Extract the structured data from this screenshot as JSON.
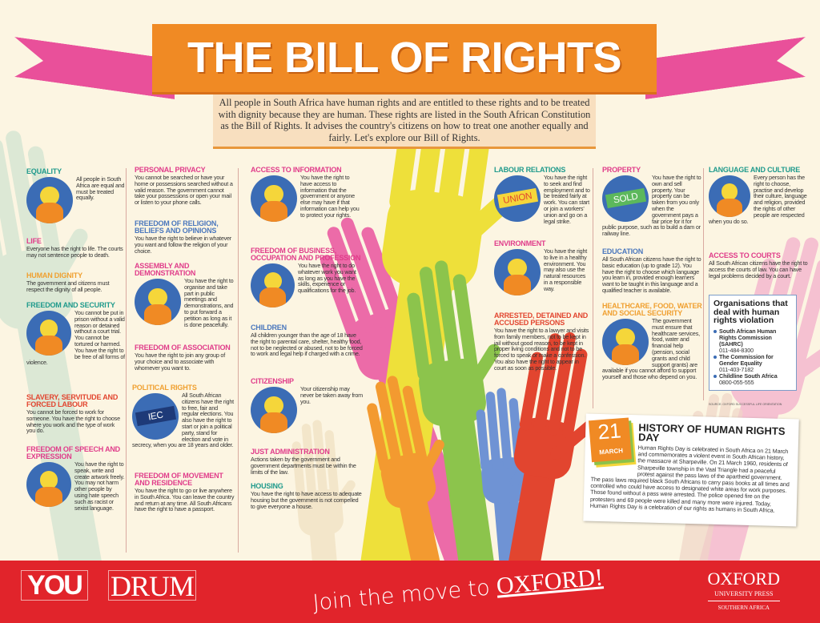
{
  "title": "THE BILL OF RIGHTS",
  "intro": "All people in South Africa have human rights and are entitled to these rights and to be treated with dignity because they are human. These rights are listed in the South African Constitution as the Bill of Rights. It advises the country's citizens on how to treat one another equally and fairly. Let's explore our Bill of Rights.",
  "colors": {
    "banner": "#f08a24",
    "ribbon": "#e9509a",
    "footer": "#e1242b",
    "icon_bg": "#3b6cb5",
    "teal": "#1f9a8c",
    "pink": "#e03c8a",
    "orange": "#f0a030",
    "red": "#e2452f",
    "blue": "#4a77bd"
  },
  "sections": [
    {
      "id": "equality",
      "title": "EQUALITY",
      "text": "All people in South Africa are equal and must be treated equally.",
      "color": "#1f9a8c",
      "icon": "people-holding-hands-icon"
    },
    {
      "id": "life",
      "title": "LIFE",
      "text": "Everyone has the right to life. The courts may not sentence people to death.",
      "color": "#e03c8a"
    },
    {
      "id": "human_dignity",
      "title": "HUMAN DIGNITY",
      "text": "The government and citizens must respect the dignity of all people.",
      "color": "#f0a030"
    },
    {
      "id": "freedom_security",
      "title": "FREEDOM AND SECURITY",
      "text": "You cannot be put in prison without a valid reason or detained without a court trial. You cannot be tortured or harmed. You have the right to be free of all forms of violence.",
      "color": "#1f9a8c",
      "icon": "person-breaking-chains-icon"
    },
    {
      "id": "slavery",
      "title": "SLAVERY, SERVITUDE AND FORCED LABOUR",
      "text": "You cannot be forced to work for someone. You have the right to choose where you work and the type of work you do.",
      "color": "#e2452f"
    },
    {
      "id": "speech",
      "title": "FREEDOM OF SPEECH AND EXPRESSION",
      "text": "You have the right to speak, write and create artwork freely. You may not harm other people by using hate speech such as racist or sexist language.",
      "color": "#e03c8a",
      "icon": "speech-bubbles-icon"
    },
    {
      "id": "privacy",
      "title": "PERSONAL PRIVACY",
      "text": "You cannot be searched or have your home or possessions searched without a valid reason. The government cannot take your possessions or open your mail or listen to your phone calls.",
      "color": "#e03c8a"
    },
    {
      "id": "religion",
      "title": "FREEDOM OF RELIGION, BELIEFS AND OPINIONS",
      "text": "You have the right to believe in whatever you want and follow the religion of your choice.",
      "color": "#4a77bd"
    },
    {
      "id": "assembly",
      "title": "ASSEMBLY AND DEMONSTRATION",
      "text": "You have the right to organise and take part in public meetings and demonstrations, and to put forward a petition as long as it is done peacefully.",
      "color": "#e03c8a",
      "icon": "crowd-icon"
    },
    {
      "id": "association",
      "title": "FREEDOM OF ASSOCIATION",
      "text": "You have the right to join any group of your choice and to associate with whomever you want to.",
      "color": "#e03c8a"
    },
    {
      "id": "political",
      "title": "POLITICAL RIGHTS",
      "text": "All South African citizens have the right to free, fair and regular elections. You also have the right to start or join a political party, stand for election and vote in secrecy, when you are 18 years and older.",
      "color": "#f0a030",
      "icon": "iec-ballot-icon",
      "icon_label": "IEC"
    },
    {
      "id": "movement",
      "title": "FREEDOM OF MOVEMENT AND RESIDENCE",
      "text": "You have the right to go or live anywhere in South Africa. You can leave the country and return at any time. All South Africans have the right to have a passport.",
      "color": "#e03c8a"
    },
    {
      "id": "information",
      "title": "ACCESS TO INFORMATION",
      "text": "You have the right to have access to information that the government or anyone else may have if that information can help you to protect your rights.",
      "color": "#e03c8a",
      "icon": "television-icon"
    },
    {
      "id": "business",
      "title": "FREEDOM OF BUSINESS, OCCUPATION AND PROFESSION",
      "text": "You have the right to do whatever work you want as long as you have the skills, experience or qualifications for the job.",
      "color": "#e03c8a",
      "icon": "doctor-icon"
    },
    {
      "id": "children",
      "title": "CHILDREN",
      "text": "All children younger than the age of 18 have the right to parental care, shelter, healthy food, not to be neglected or abused, not to be forced to work and legal help if charged with a crime.",
      "color": "#4a77bd"
    },
    {
      "id": "citizenship",
      "title": "CITIZENSHIP",
      "text": "Your citizenship may never be taken away from you.",
      "color": "#e03c8a",
      "icon": "passport-icon"
    },
    {
      "id": "just_admin",
      "title": "JUST ADMINISTRATION",
      "text": "Actions taken by the government and government departments must be within the limits of the law.",
      "color": "#e03c8a"
    },
    {
      "id": "housing",
      "title": "HOUSING",
      "text": "You have the right to have access to adequate housing but the government is not compelled to give everyone a house.",
      "color": "#1f9a8c"
    },
    {
      "id": "labour",
      "title": "LABOUR RELATIONS",
      "text": "You have the right to seek and find employment and to be treated fairly at work. You can start or join a workers' union and go on a legal strike.",
      "color": "#1f9a8c",
      "icon": "union-sign-icon",
      "icon_label": "UNION"
    },
    {
      "id": "environment",
      "title": "ENVIRONMENT",
      "text": "You have the right to live in a healthy environment. You may also use the natural resources in a responsible way.",
      "color": "#e03c8a",
      "icon": "tree-icon"
    },
    {
      "id": "arrested",
      "title": "ARRESTED, DETAINED AND ACCUSED PERSONS",
      "text": "You have the right to a lawyer and visits from family members, not to be kept in jail without good reason, to be kept in proper living conditions and not to be forced to speak or make a confession. You also have the right to appear in court as soon as possible.",
      "color": "#e2452f"
    },
    {
      "id": "property",
      "title": "PROPERTY",
      "text": "You have the right to own and sell property. Your property can be taken from you only when the government pays a fair price for it for public purpose, such as to build a dam or railway line.",
      "color": "#e03c8a",
      "icon": "sold-sign-icon",
      "icon_label": "SOLD"
    },
    {
      "id": "education",
      "title": "EDUCATION",
      "text": "All South African citizens have the right to basic education (up to grade 12). You have the right to choose which language you learn in, provided enough learners want to be taught in this language and a qualified teacher is available.",
      "color": "#4a77bd"
    },
    {
      "id": "healthcare",
      "title": "HEALTHCARE, FOOD, WATER AND SOCIAL SECURITY",
      "text": "The government must ensure that healthcare services, food, water and financial help (pension, social grants and child support grants) are available if you cannot afford to support yourself and those who depend on you.",
      "color": "#f0a030",
      "icon": "water-tap-icon"
    },
    {
      "id": "language",
      "title": "LANGUAGE AND CULTURE",
      "text": "Every person has the right to choose, practise and develop their culture, language and religion, provided the rights of other people are respected when you do so.",
      "color": "#1f9a8c",
      "icon": "cultures-icon"
    },
    {
      "id": "courts",
      "title": "ACCESS TO COURTS",
      "text": "All South African citizens have the right to access the courts of law. You can have legal problems decided by a court.",
      "color": "#e03c8a"
    }
  ],
  "orgs": {
    "title": "Organisations that deal with human rights violation",
    "items": [
      {
        "name": "South African Human Rights Commission (SAHRC)",
        "phone": "011-484-8300"
      },
      {
        "name": "The Commission for Gender Equality",
        "phone": "011-403-7182"
      },
      {
        "name": "Childline South Africa",
        "phone": "0800-055-555"
      }
    ]
  },
  "source": "SOURCE: OXFORD SUCCESSFUL LIFE ORIENTATION",
  "history": {
    "day": "21",
    "month": "MARCH",
    "title": "HISTORY OF HUMAN RIGHTS DAY",
    "text": "Human Rights Day is celebrated in South Africa on 21 March and commemorates a violent event in South African history, the massacre at Sharpeville. On 21 March 1960, residents of Sharpeville township in the Vaal Triangle had a peaceful protest against the pass laws of the apartheid government. The pass laws required black South Africans to carry pass books at all times and controlled who could have access to designated white areas for work purposes. Those found without a pass were arrested. The police opened fire on the protesters and 69 people were killed and many more were injured. Today, Human Rights Day is a celebration of our rights as humans in South Africa."
  },
  "footer": {
    "logo1": "YOU",
    "logo2": "DRUM",
    "slogan_prefix": "Join the move to ",
    "slogan_brand": "OXFORD!",
    "publisher": "OXFORD",
    "publisher_sub": "UNIVERSITY PRESS",
    "publisher_region": "SOUTHERN AFRICA"
  }
}
